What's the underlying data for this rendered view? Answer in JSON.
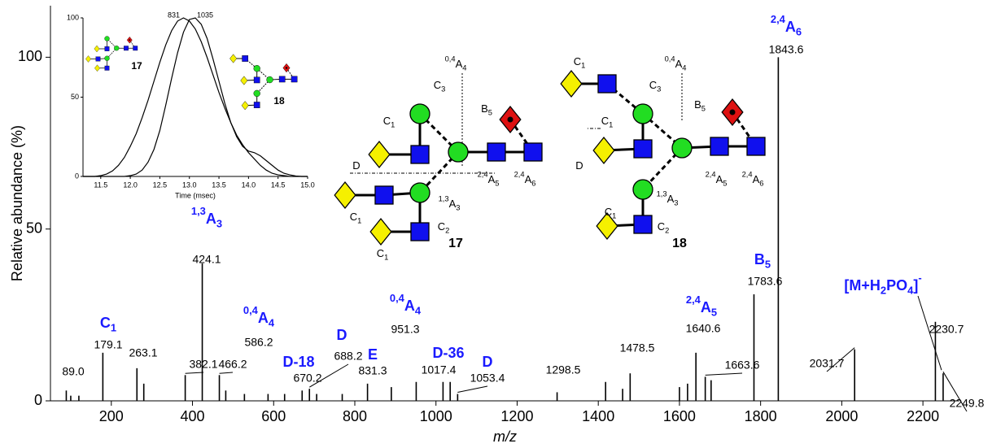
{
  "chart_data": [
    {
      "type": "stem",
      "xlabel": "m/z",
      "ylabel": "Relative abundance (%)",
      "xlim": [
        50,
        2290
      ],
      "ylim": [
        0,
        115
      ],
      "xticks": [
        200,
        400,
        600,
        800,
        1000,
        1200,
        1400,
        1600,
        1800,
        2000,
        2200
      ],
      "yticks": [
        0,
        50,
        100
      ],
      "color": "#000000",
      "x": [
        89.0,
        100,
        120,
        179.1,
        263.1,
        280,
        382.1,
        424.1,
        466.2,
        482,
        528,
        586.2,
        627,
        670.2,
        688.2,
        706,
        769,
        831.3,
        890,
        951.3,
        1017.4,
        1035,
        1053.4,
        1298.5,
        1418,
        1460,
        1478.5,
        1600,
        1620,
        1640.6,
        1663.6,
        1678,
        1783.6,
        1843.6,
        2031.7,
        2230.7,
        2249.8
      ],
      "values": [
        3,
        1.5,
        1.5,
        14,
        9.5,
        5,
        7.5,
        40,
        7.5,
        3,
        2,
        2,
        2,
        3,
        3.5,
        2,
        2,
        5,
        4,
        5.5,
        5.5,
        5.5,
        2,
        2.5,
        5.5,
        3.5,
        8,
        4,
        5,
        14,
        7,
        6,
        31,
        100,
        15,
        23,
        8
      ],
      "value_labels": [
        "89.0",
        null,
        null,
        "179.1",
        "263.1",
        null,
        "382.1",
        "424.1",
        "466.2",
        null,
        null,
        "586.2",
        null,
        "670.2",
        "688.2",
        null,
        null,
        "831.3",
        null,
        "951.3",
        "1017.4",
        null,
        "1053.4",
        "1298.5",
        null,
        null,
        "1478.5",
        null,
        null,
        "1640.6",
        "1663.6",
        null,
        "1783.6",
        "1843.6",
        "2031.7",
        "2230.7",
        "2249.8"
      ],
      "fragments": [
        null,
        null,
        null,
        [
          {
            "text": "C",
            "pos": "base"
          },
          {
            "text": "1",
            "pos": "sub"
          }
        ],
        null,
        null,
        null,
        [
          {
            "text": "1,3",
            "pos": "sup"
          },
          {
            "text": "A",
            "pos": "base"
          },
          {
            "text": "3",
            "pos": "sub"
          }
        ],
        null,
        null,
        null,
        [
          {
            "text": "0,4",
            "pos": "sup"
          },
          {
            "text": "A",
            "pos": "base"
          },
          {
            "text": "4",
            "pos": "sub"
          }
        ],
        null,
        [
          {
            "text": "D-18",
            "pos": "base"
          }
        ],
        [
          {
            "text": "D",
            "pos": "base"
          }
        ],
        null,
        null,
        [
          {
            "text": "E",
            "pos": "base"
          }
        ],
        null,
        [
          {
            "text": "0,4",
            "pos": "sup"
          },
          {
            "text": "A",
            "pos": "base"
          },
          {
            "text": "4",
            "pos": "sub"
          }
        ],
        [
          {
            "text": "D-36",
            "pos": "base"
          }
        ],
        null,
        [
          {
            "text": "D",
            "pos": "base"
          }
        ],
        null,
        null,
        null,
        null,
        null,
        null,
        [
          {
            "text": "2,4",
            "pos": "sup"
          },
          {
            "text": "A",
            "pos": "base"
          },
          {
            "text": "5",
            "pos": "sub"
          }
        ],
        null,
        null,
        [
          {
            "text": "B",
            "pos": "base"
          },
          {
            "text": "5",
            "pos": "sub"
          }
        ],
        [
          {
            "text": "2,4",
            "pos": "sup"
          },
          {
            "text": "A",
            "pos": "base"
          },
          {
            "text": "6",
            "pos": "sub"
          }
        ],
        null,
        [
          {
            "text": "[M+H",
            "pos": "base"
          },
          {
            "text": "2",
            "pos": "sub"
          },
          {
            "text": "PO",
            "pos": "base"
          },
          {
            "text": "4",
            "pos": "sub"
          },
          {
            "text": "]",
            "pos": "base"
          },
          {
            "text": "-",
            "pos": "sup"
          }
        ],
        null
      ]
    },
    {
      "type": "line",
      "xlabel": "Time (msec)",
      "xlim": [
        11.2,
        15.0
      ],
      "ylim": [
        0,
        100
      ],
      "xticks": [
        11.5,
        {
          "value": 12,
          "label": "12.0"
        },
        12.5,
        {
          "value": 13,
          "label": "13.0"
        },
        13.5,
        {
          "value": 14,
          "label": "14.0"
        },
        14.5,
        {
          "value": 15,
          "label": "15.0"
        }
      ],
      "yticks": [
        0,
        50,
        100
      ],
      "x": [
        11.2,
        11.3,
        11.4,
        11.5,
        11.6,
        11.7,
        11.8,
        11.9,
        12.0,
        12.1,
        12.2,
        12.3,
        12.4,
        12.5,
        12.6,
        12.7,
        12.8,
        12.9,
        13.0,
        13.1,
        13.2,
        13.3,
        13.4,
        13.5,
        13.6,
        13.7,
        13.8,
        13.9,
        14.0,
        14.1,
        14.2,
        14.3,
        14.4,
        14.5,
        14.6,
        14.7,
        14.8,
        14.9,
        15.0
      ],
      "series": [
        {
          "name": "831",
          "color": "#000000",
          "values": [
            0,
            0,
            0,
            0.5,
            1.5,
            3.5,
            7,
            12,
            19,
            27,
            37,
            48,
            60,
            72,
            83,
            92,
            98,
            100,
            98,
            93,
            85,
            75,
            64,
            53,
            43,
            34,
            26,
            20,
            15,
            11,
            7,
            4,
            2,
            1,
            0.5,
            0,
            0,
            0,
            0
          ]
        },
        {
          "name": "1035",
          "color": "#000000",
          "values": [
            0,
            0,
            0,
            0,
            0,
            0,
            0,
            0,
            0.5,
            1.5,
            4,
            9,
            17,
            29,
            45,
            62,
            78,
            91,
            99,
            100,
            96,
            87,
            74,
            60,
            46,
            34,
            25,
            19,
            16,
            15,
            13,
            10,
            7,
            4,
            2,
            1,
            0.3,
            0,
            0
          ]
        }
      ]
    }
  ],
  "structures": [
    {
      "label": "17",
      "cleavages": [
        [
          {
            "text": "C",
            "pos": "base"
          },
          {
            "text": "1",
            "pos": "sub"
          }
        ],
        [
          {
            "text": "C",
            "pos": "base"
          },
          {
            "text": "3",
            "pos": "sub"
          }
        ],
        [
          {
            "text": "0,4",
            "pos": "sup"
          },
          {
            "text": "A",
            "pos": "base"
          },
          {
            "text": "4",
            "pos": "sub"
          }
        ],
        [
          {
            "text": "B",
            "pos": "base"
          },
          {
            "text": "5",
            "pos": "sub"
          }
        ],
        [
          {
            "text": "D",
            "pos": "base"
          }
        ],
        [
          {
            "text": "2,4",
            "pos": "sup"
          },
          {
            "text": "A",
            "pos": "base"
          },
          {
            "text": "5",
            "pos": "sub"
          }
        ],
        [
          {
            "text": "2,4",
            "pos": "sup"
          },
          {
            "text": "A",
            "pos": "base"
          },
          {
            "text": "6",
            "pos": "sub"
          }
        ],
        [
          {
            "text": "1,3",
            "pos": "sup"
          },
          {
            "text": "A",
            "pos": "base"
          },
          {
            "text": "3",
            "pos": "sub"
          }
        ],
        [
          {
            "text": "C",
            "pos": "base"
          },
          {
            "text": "1",
            "pos": "sub"
          }
        ],
        [
          {
            "text": "C",
            "pos": "base"
          },
          {
            "text": "2",
            "pos": "sub"
          }
        ],
        [
          {
            "text": "C",
            "pos": "base"
          },
          {
            "text": "1",
            "pos": "sub"
          }
        ]
      ]
    },
    {
      "label": "18",
      "cleavages": [
        [
          {
            "text": "C",
            "pos": "base"
          },
          {
            "text": "1",
            "pos": "sub"
          }
        ],
        [
          {
            "text": "C",
            "pos": "base"
          },
          {
            "text": "3",
            "pos": "sub"
          }
        ],
        [
          {
            "text": "0,4",
            "pos": "sup"
          },
          {
            "text": "A",
            "pos": "base"
          },
          {
            "text": "4",
            "pos": "sub"
          }
        ],
        [
          {
            "text": "B",
            "pos": "base"
          },
          {
            "text": "5",
            "pos": "sub"
          }
        ],
        [
          {
            "text": "C",
            "pos": "base"
          },
          {
            "text": "1",
            "pos": "sub"
          }
        ],
        [
          {
            "text": "D",
            "pos": "base"
          }
        ],
        [
          {
            "text": "2,4",
            "pos": "sup"
          },
          {
            "text": "A",
            "pos": "base"
          },
          {
            "text": "5",
            "pos": "sub"
          }
        ],
        [
          {
            "text": "2,4",
            "pos": "sup"
          },
          {
            "text": "A",
            "pos": "base"
          },
          {
            "text": "6",
            "pos": "sub"
          }
        ],
        [
          {
            "text": "1,3",
            "pos": "sup"
          },
          {
            "text": "A",
            "pos": "base"
          },
          {
            "text": "3",
            "pos": "sub"
          }
        ],
        [
          {
            "text": "C",
            "pos": "base"
          },
          {
            "text": "1",
            "pos": "sub"
          }
        ],
        [
          {
            "text": "C",
            "pos": "base"
          },
          {
            "text": "2",
            "pos": "sub"
          }
        ]
      ]
    }
  ]
}
